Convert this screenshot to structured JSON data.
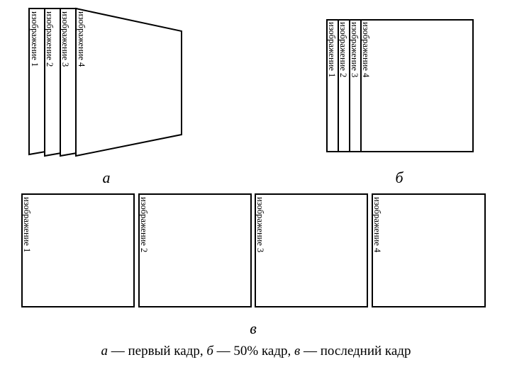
{
  "panels": {
    "a": {
      "letter": "а"
    },
    "b": {
      "letter": "б"
    },
    "c": {
      "letter": "в"
    }
  },
  "frames": {
    "img1": "изображение 1",
    "img2": "изображение 2",
    "img3": "изображение 3",
    "img4": "изображение 4"
  },
  "caption": {
    "a_letter": "а",
    "a_text": " — первый кадр, ",
    "b_letter": "б",
    "b_text": " — 50% кадр, ",
    "c_letter": "в",
    "c_text": " — последний кадр"
  }
}
